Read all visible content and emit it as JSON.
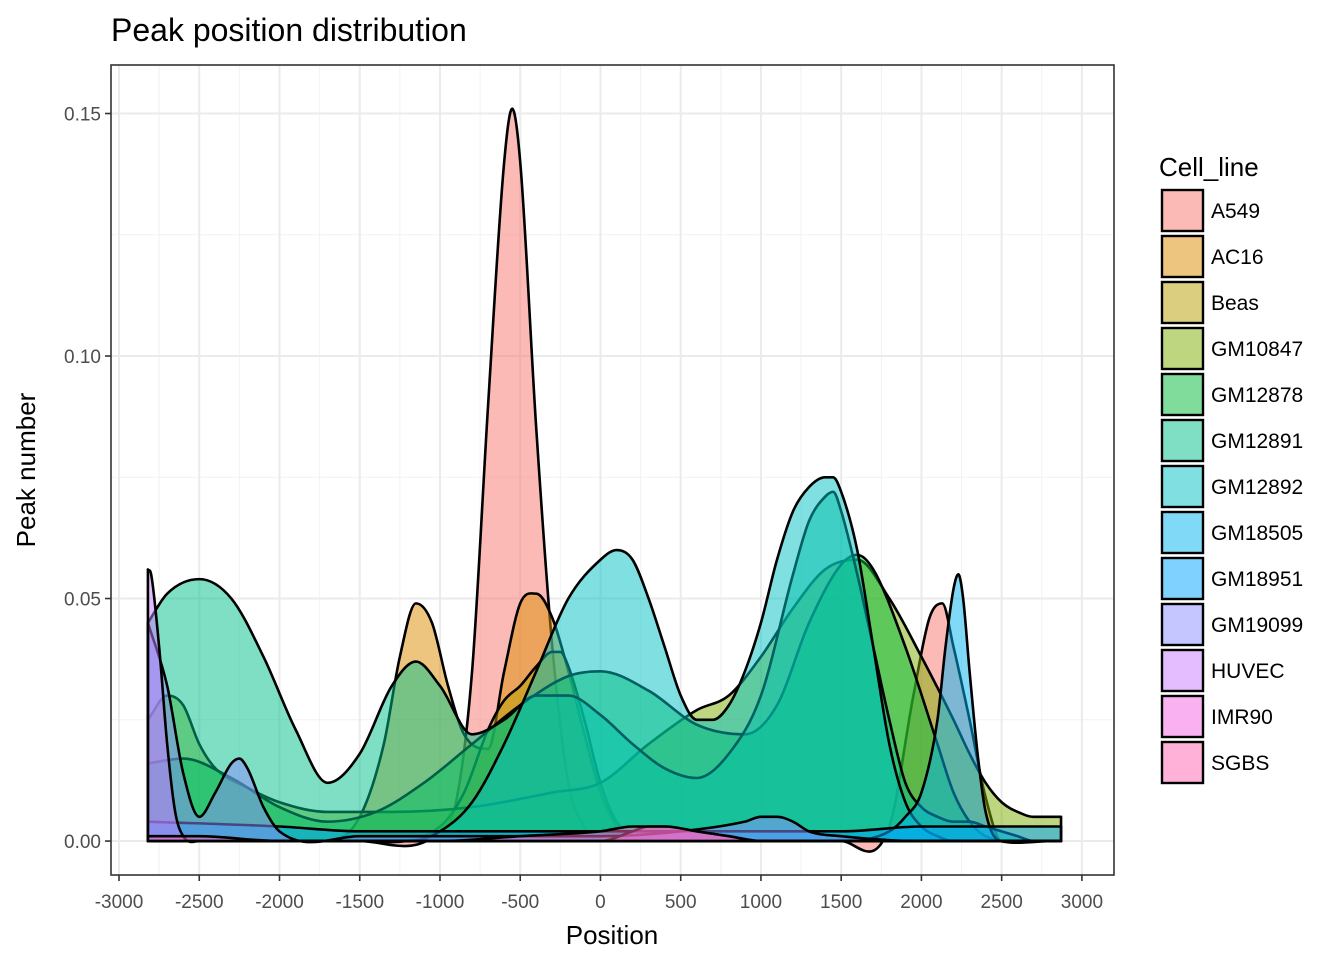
{
  "chart_data": {
    "type": "area",
    "title": "Peak position distribution",
    "xlabel": "Position",
    "ylabel": "Peak number",
    "xlim": [
      -3050,
      3200
    ],
    "ylim": [
      -0.007,
      0.16
    ],
    "x_ticks": [
      -3000,
      -2500,
      -2000,
      -1500,
      -1000,
      -500,
      0,
      500,
      1000,
      1500,
      2000,
      2500,
      3000
    ],
    "x_tick_labels": [
      "-3000",
      "-2500",
      "-2000",
      "-1500",
      "-1000",
      "-500",
      "0",
      "500",
      "1000",
      "1500",
      "2000",
      "2500",
      "3000"
    ],
    "y_ticks": [
      0.0,
      0.05,
      0.1,
      0.15
    ],
    "y_tick_labels": [
      "0.00",
      "0.05",
      "0.10",
      "0.15"
    ],
    "grid": true,
    "legend_title": "Cell_line",
    "legend_position": "right",
    "fill_opacity": 0.5,
    "series": [
      {
        "name": "A549",
        "color": "#F8766D",
        "x": [
          -2820,
          -1500,
          -1000,
          -900,
          -800,
          -700,
          -600,
          -550,
          -500,
          -400,
          -300,
          -200,
          -100,
          0,
          200,
          400,
          700,
          1000,
          1500,
          1800,
          1950,
          2050,
          2130,
          2200,
          2300,
          2400,
          2500,
          2870
        ],
        "y": [
          0.0,
          0.0,
          0.002,
          0.008,
          0.035,
          0.09,
          0.14,
          0.151,
          0.14,
          0.085,
          0.04,
          0.012,
          0.003,
          0.0,
          0.0,
          0.0,
          0.0,
          0.0,
          0.0,
          0.003,
          0.03,
          0.046,
          0.049,
          0.04,
          0.025,
          0.009,
          0.0,
          0.0
        ]
      },
      {
        "name": "AC16",
        "color": "#DE8C00",
        "x": [
          -2820,
          -1700,
          -1500,
          -1350,
          -1250,
          -1150,
          -1050,
          -950,
          -850,
          -700,
          -600,
          -500,
          -400,
          -300,
          -200,
          -100,
          0,
          100,
          200,
          300,
          500,
          2870
        ],
        "y": [
          0.0,
          0.0,
          0.005,
          0.02,
          0.038,
          0.049,
          0.045,
          0.032,
          0.022,
          0.019,
          0.035,
          0.049,
          0.051,
          0.046,
          0.035,
          0.022,
          0.01,
          0.003,
          0.0,
          0.0,
          0.0,
          0.0
        ]
      },
      {
        "name": "Beas",
        "color": "#B79F00",
        "x": [
          -2820,
          -1500,
          -1000,
          -850,
          -700,
          -600,
          -500,
          -400,
          -300,
          -250,
          -200,
          -100,
          0,
          100,
          300,
          2870
        ],
        "y": [
          0.0,
          0.0,
          0.003,
          0.01,
          0.023,
          0.029,
          0.032,
          0.036,
          0.039,
          0.039,
          0.036,
          0.025,
          0.012,
          0.004,
          0.0,
          0.0
        ]
      },
      {
        "name": "GM10847",
        "color": "#7CAE00",
        "x": [
          -2820,
          -2700,
          -2600,
          -2500,
          -2400,
          -2200,
          -2000,
          -1700,
          -1300,
          -800,
          -300,
          0,
          300,
          600,
          800,
          1000,
          1200,
          1400,
          1600,
          1800,
          2000,
          2200,
          2300,
          2400,
          2500,
          2600,
          2700,
          2870
        ],
        "y": [
          0.025,
          0.03,
          0.028,
          0.02,
          0.015,
          0.011,
          0.008,
          0.006,
          0.006,
          0.007,
          0.01,
          0.012,
          0.02,
          0.027,
          0.03,
          0.038,
          0.048,
          0.056,
          0.058,
          0.05,
          0.038,
          0.025,
          0.018,
          0.012,
          0.008,
          0.006,
          0.005,
          0.005
        ]
      },
      {
        "name": "GM12878",
        "color": "#00BA38",
        "x": [
          -2820,
          -2600,
          -2300,
          -2000,
          -1700,
          -1400,
          -1100,
          -800,
          -500,
          -200,
          0,
          300,
          600,
          900,
          1100,
          1300,
          1500,
          1600,
          1700,
          1900,
          2100,
          2200,
          2300,
          2400,
          2870
        ],
        "y": [
          0.016,
          0.017,
          0.013,
          0.007,
          0.004,
          0.006,
          0.012,
          0.02,
          0.028,
          0.034,
          0.035,
          0.031,
          0.024,
          0.022,
          0.028,
          0.045,
          0.057,
          0.059,
          0.056,
          0.04,
          0.02,
          0.01,
          0.004,
          0.001,
          0.0
        ]
      },
      {
        "name": "GM12891",
        "color": "#00C08B",
        "x": [
          -2820,
          -2700,
          -2500,
          -2300,
          -2100,
          -1900,
          -1700,
          -1500,
          -1300,
          -1150,
          -1000,
          -800,
          -600,
          -400,
          -200,
          0,
          200,
          400,
          600,
          800,
          1000,
          1200,
          1300,
          1400,
          1450,
          1500,
          1600,
          1700,
          1800,
          1900,
          2000,
          2100,
          2200,
          2300,
          2400,
          2500,
          2600,
          2700,
          2870
        ],
        "y": [
          0.045,
          0.051,
          0.054,
          0.05,
          0.038,
          0.023,
          0.012,
          0.018,
          0.032,
          0.037,
          0.032,
          0.022,
          0.025,
          0.03,
          0.03,
          0.026,
          0.02,
          0.015,
          0.013,
          0.018,
          0.03,
          0.055,
          0.066,
          0.071,
          0.072,
          0.068,
          0.055,
          0.04,
          0.025,
          0.012,
          0.007,
          0.005,
          0.004,
          0.004,
          0.003,
          0.002,
          0.001,
          0.0,
          0.0
        ]
      },
      {
        "name": "GM12892",
        "color": "#00BFC4",
        "x": [
          -2820,
          -1200,
          -1000,
          -800,
          -600,
          -400,
          -200,
          0,
          100,
          200,
          300,
          400,
          500,
          600,
          700,
          800,
          900,
          1000,
          1100,
          1200,
          1300,
          1400,
          1450,
          1500,
          1600,
          1700,
          1800,
          1900,
          2000,
          2100,
          2200,
          2300,
          2400,
          2500,
          2870
        ],
        "y": [
          0.0,
          0.0,
          0.002,
          0.008,
          0.02,
          0.035,
          0.05,
          0.058,
          0.06,
          0.058,
          0.05,
          0.04,
          0.03,
          0.025,
          0.025,
          0.028,
          0.035,
          0.045,
          0.058,
          0.068,
          0.073,
          0.075,
          0.075,
          0.072,
          0.06,
          0.04,
          0.02,
          0.008,
          0.003,
          0.001,
          0.0,
          0.0,
          0.0,
          0.0,
          0.0
        ]
      },
      {
        "name": "GM18505",
        "color": "#00B4EF",
        "x": [
          -2820,
          -2000,
          -1000,
          0,
          500,
          1000,
          1500,
          1800,
          1900,
          2000,
          2100,
          2150,
          2200,
          2230,
          2260,
          2300,
          2350,
          2400,
          2500,
          2870
        ],
        "y": [
          0.0,
          0.0,
          0.0,
          0.0,
          0.0,
          0.0,
          0.0,
          0.002,
          0.005,
          0.01,
          0.025,
          0.04,
          0.052,
          0.055,
          0.05,
          0.035,
          0.018,
          0.006,
          0.0,
          0.0
        ]
      },
      {
        "name": "GM18951",
        "color": "#00A5FF",
        "x": [
          -2820,
          -2000,
          -1500,
          -1000,
          -500,
          0,
          500,
          1000,
          1500,
          2000,
          2500,
          2870
        ],
        "y": [
          0.004,
          0.003,
          0.002,
          0.002,
          0.002,
          0.002,
          0.002,
          0.002,
          0.002,
          0.003,
          0.003,
          0.003
        ]
      },
      {
        "name": "GM19099",
        "color": "#8C8CFF",
        "x": [
          -2820,
          -2700,
          -2600,
          -2500,
          -2400,
          -2300,
          -2250,
          -2200,
          -2100,
          -2000,
          -1500,
          -1000,
          0,
          500,
          900,
          1000,
          1100,
          1200,
          1300,
          1500,
          2000,
          2870
        ],
        "y": [
          0.045,
          0.032,
          0.014,
          0.005,
          0.01,
          0.016,
          0.017,
          0.015,
          0.007,
          0.002,
          0.001,
          0.001,
          0.001,
          0.002,
          0.004,
          0.005,
          0.005,
          0.004,
          0.002,
          0.001,
          0.0,
          0.0
        ]
      },
      {
        "name": "HUVEC",
        "color": "#C77CFF",
        "x": [
          -2820,
          -2800,
          -2750,
          -2700,
          -2650,
          -2600,
          -2500,
          -2000,
          -1000,
          0,
          500,
          1000,
          1500,
          2000,
          2870
        ],
        "y": [
          0.056,
          0.055,
          0.04,
          0.02,
          0.006,
          0.001,
          0.0,
          0.0,
          0.0,
          0.0,
          0.0,
          0.0,
          0.0,
          0.0,
          0.0
        ]
      },
      {
        "name": "IMR90",
        "color": "#F564E3",
        "x": [
          -2820,
          -2000,
          -1000,
          -500,
          -200,
          0,
          200,
          300,
          400,
          600,
          800,
          1000,
          1500,
          2000,
          2870
        ],
        "y": [
          0.0,
          0.0,
          0.0,
          0.0,
          0.0,
          0.0,
          0.002,
          0.003,
          0.003,
          0.002,
          0.001,
          0.0,
          0.0,
          0.0,
          0.0
        ]
      },
      {
        "name": "SGBS",
        "color": "#FF64B0",
        "x": [
          -2820,
          -2500,
          -2000,
          -1500,
          -1000,
          -500,
          0,
          200,
          300,
          400,
          600,
          800,
          1000,
          1500,
          2000,
          2870
        ],
        "y": [
          0.001,
          0.001,
          0.0,
          0.0,
          0.0,
          0.001,
          0.002,
          0.003,
          0.003,
          0.003,
          0.002,
          0.001,
          0.0,
          0.0,
          0.0,
          0.0
        ]
      }
    ]
  }
}
